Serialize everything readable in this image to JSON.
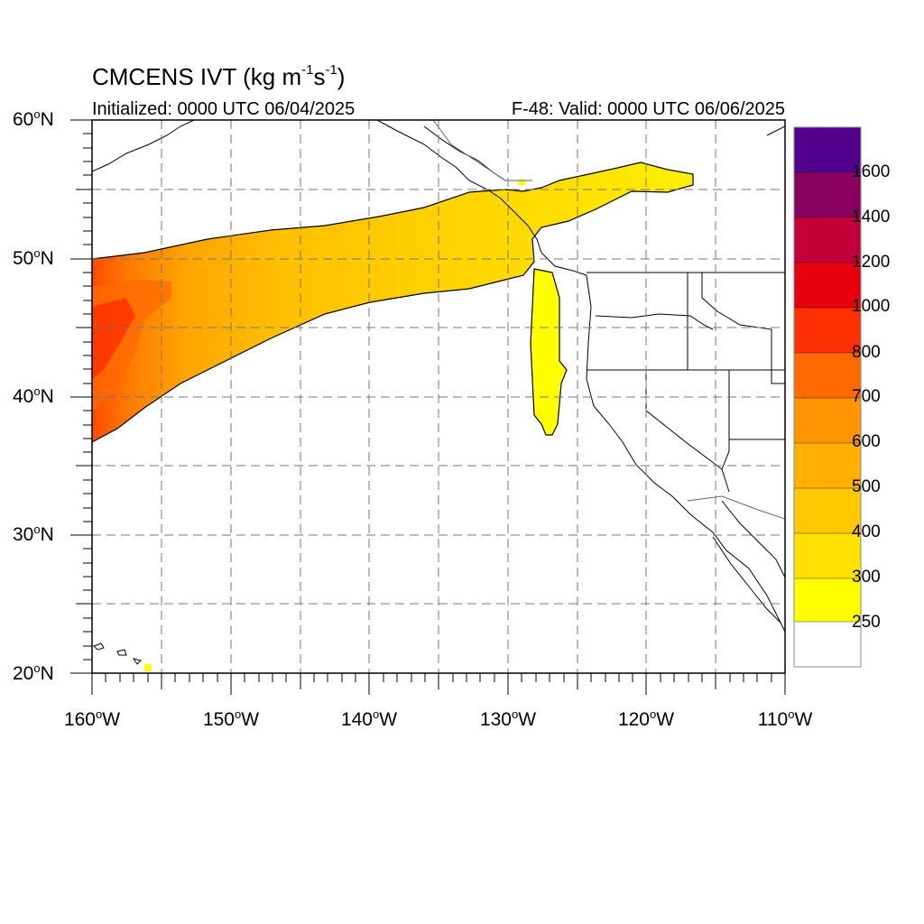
{
  "title": {
    "main": "CMCENS IVT (kg m",
    "sup1": "-1",
    "mid": "s",
    "sup2": "-1",
    "end": ")"
  },
  "subtitle_left": "Initialized: 0000 UTC 06/04/2025",
  "subtitle_right": "F-48: Valid: 0000 UTC 06/06/2025",
  "map": {
    "lon_range": [
      -160,
      -110
    ],
    "lat_range": [
      20,
      60
    ],
    "gridlines": "dashed",
    "lat_labels": [
      {
        "deg": "60",
        "hemi": "N"
      },
      {
        "deg": "50",
        "hemi": "N"
      },
      {
        "deg": "40",
        "hemi": "N"
      },
      {
        "deg": "30",
        "hemi": "N"
      },
      {
        "deg": "20",
        "hemi": "N"
      }
    ],
    "lon_labels": [
      {
        "deg": "160",
        "hemi": "W"
      },
      {
        "deg": "150",
        "hemi": "W"
      },
      {
        "deg": "140",
        "hemi": "W"
      },
      {
        "deg": "130",
        "hemi": "W"
      },
      {
        "deg": "120",
        "hemi": "W"
      },
      {
        "deg": "110",
        "hemi": "W"
      }
    ]
  },
  "colorbar": {
    "labels": [
      "1600",
      "1400",
      "1200",
      "1000",
      "800",
      "700",
      "600",
      "500",
      "400",
      "300",
      "250"
    ],
    "colors_top_to_bottom": [
      "#53008f",
      "#8a005e",
      "#c4003a",
      "#e8000e",
      "#ff3000",
      "#ff6a00",
      "#ff9400",
      "#ffb000",
      "#ffc800",
      "#ffe000",
      "#ffff00",
      "#ffffff"
    ]
  }
}
